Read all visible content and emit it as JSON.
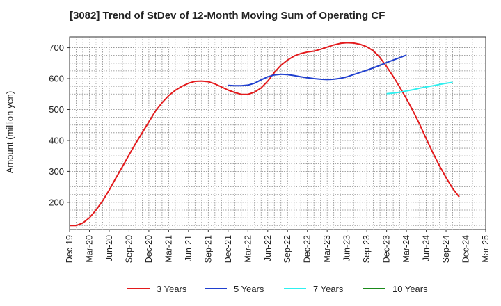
{
  "chart_data": {
    "type": "line",
    "title": "[3082]  Trend of StDev of 12-Month Moving Sum of Operating CF",
    "xlabel": "",
    "ylabel": "Amount (million yen)",
    "ylim": [
      112,
      735
    ],
    "y_ticks": [
      200,
      300,
      400,
      500,
      600,
      700
    ],
    "x_ticks": [
      "Dec-19",
      "Mar-20",
      "Jun-20",
      "Sep-20",
      "Dec-20",
      "Mar-21",
      "Jun-21",
      "Sep-21",
      "Dec-21",
      "Mar-22",
      "Jun-22",
      "Sep-22",
      "Dec-22",
      "Mar-23",
      "Jun-23",
      "Sep-23",
      "Dec-23",
      "Mar-24",
      "Jun-24",
      "Sep-24",
      "Dec-24",
      "Mar-25"
    ],
    "grid": true,
    "legend_position": "bottom",
    "series": [
      {
        "name": "3 Years",
        "color": "#e31a1c",
        "x_start": 0,
        "values": [
          125,
          125,
          133,
          150,
          175,
          205,
          240,
          278,
          315,
          353,
          390,
          425,
          460,
          495,
          522,
          545,
          562,
          575,
          585,
          591,
          592,
          590,
          583,
          573,
          563,
          555,
          549,
          549,
          556,
          570,
          592,
          620,
          643,
          660,
          673,
          681,
          686,
          689,
          695,
          702,
          709,
          714,
          716,
          715,
          711,
          703,
          690,
          668,
          639,
          607,
          572,
          535,
          495,
          452,
          405,
          360,
          318,
          280,
          245,
          217
        ]
      },
      {
        "name": "5 Years",
        "color": "#1f3fcf",
        "x_start": 24,
        "values": [
          578,
          577,
          577,
          579,
          585,
          596,
          606,
          612,
          614,
          613,
          610,
          606,
          603,
          600,
          598,
          597,
          598,
          601,
          606,
          613,
          620,
          627,
          635,
          643,
          652,
          660,
          668,
          676
        ]
      },
      {
        "name": "7 Years",
        "color": "#2ef0f0",
        "x_start": 48,
        "values": [
          551,
          553,
          556,
          560,
          564,
          569,
          573,
          577,
          581,
          585,
          588
        ]
      },
      {
        "name": "10 Years",
        "color": "#1a8a1a",
        "x_start": 0,
        "values": []
      }
    ]
  }
}
